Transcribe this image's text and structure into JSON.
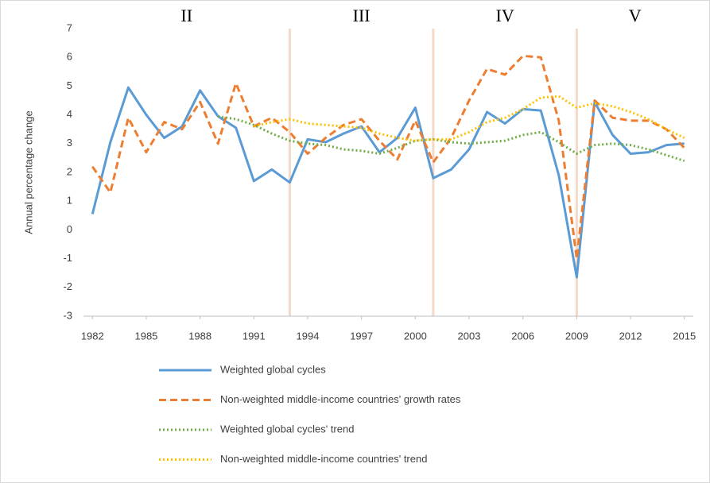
{
  "chart_data": {
    "type": "line",
    "y_label": "Annual percentage change",
    "period_labels": [
      "II",
      "III",
      "IV",
      "V"
    ],
    "period_boundaries": [
      1993,
      2001,
      2009
    ],
    "period_color": "#f4d9c6",
    "x": [
      1982,
      1983,
      1984,
      1985,
      1986,
      1987,
      1988,
      1989,
      1990,
      1991,
      1992,
      1993,
      1994,
      1995,
      1996,
      1997,
      1998,
      1999,
      2000,
      2001,
      2002,
      2003,
      2004,
      2005,
      2006,
      2007,
      2008,
      2009,
      2010,
      2011,
      2012,
      2013,
      2014,
      2015
    ],
    "xlim": [
      1981.5,
      2015.5
    ],
    "xticks": [
      1982,
      1985,
      1988,
      1991,
      1994,
      1997,
      2000,
      2003,
      2006,
      2009,
      2012,
      2015
    ],
    "ylim": [
      -3,
      7
    ],
    "yticks": [
      -3,
      -2,
      -1,
      0,
      1,
      2,
      3,
      4,
      5,
      6,
      7
    ],
    "series": [
      {
        "name": "Weighted global cycles",
        "color": "#5b9bd5",
        "dash": "solid",
        "values": [
          0.55,
          3.05,
          4.95,
          4.0,
          3.2,
          3.6,
          4.85,
          3.95,
          3.55,
          1.7,
          2.1,
          1.65,
          3.15,
          3.05,
          3.35,
          3.6,
          2.7,
          3.2,
          4.25,
          1.8,
          2.1,
          2.8,
          4.1,
          3.7,
          4.2,
          4.15,
          1.9,
          -1.65,
          4.45,
          3.3,
          2.65,
          2.7,
          2.95,
          3.0
        ]
      },
      {
        "name": "Non-weighted middle-income countries' growth rates",
        "color": "#ed7d31",
        "dash": "dashed",
        "values": [
          2.2,
          1.3,
          3.9,
          2.7,
          3.75,
          3.5,
          4.45,
          3.0,
          5.1,
          3.6,
          3.9,
          3.4,
          2.65,
          3.2,
          3.65,
          3.85,
          3.1,
          2.45,
          3.8,
          2.35,
          3.2,
          4.5,
          5.6,
          5.4,
          6.05,
          6.0,
          3.8,
          -1.0,
          4.5,
          3.9,
          3.8,
          3.8,
          3.5,
          2.85
        ]
      },
      {
        "name": "Weighted global cycles' trend",
        "color": "#70ad47",
        "dash": "dotted",
        "values": [
          null,
          null,
          null,
          null,
          null,
          null,
          null,
          3.95,
          3.85,
          3.65,
          3.35,
          3.1,
          3.0,
          2.95,
          2.8,
          2.75,
          2.65,
          2.85,
          3.1,
          3.15,
          3.05,
          3.0,
          3.05,
          3.1,
          3.3,
          3.4,
          3.05,
          2.65,
          2.95,
          3.0,
          2.95,
          2.8,
          2.6,
          2.4
        ]
      },
      {
        "name": "Non-weighted middle-income countries' trend",
        "color": "#ffc000",
        "dash": "dotted",
        "values": [
          null,
          null,
          null,
          null,
          null,
          null,
          null,
          null,
          null,
          3.6,
          3.75,
          3.85,
          3.7,
          3.65,
          3.6,
          3.55,
          3.35,
          3.2,
          3.1,
          3.15,
          3.15,
          3.4,
          3.75,
          3.9,
          4.2,
          4.6,
          4.65,
          4.25,
          4.4,
          4.3,
          4.1,
          3.85,
          3.5,
          3.2
        ]
      }
    ]
  }
}
